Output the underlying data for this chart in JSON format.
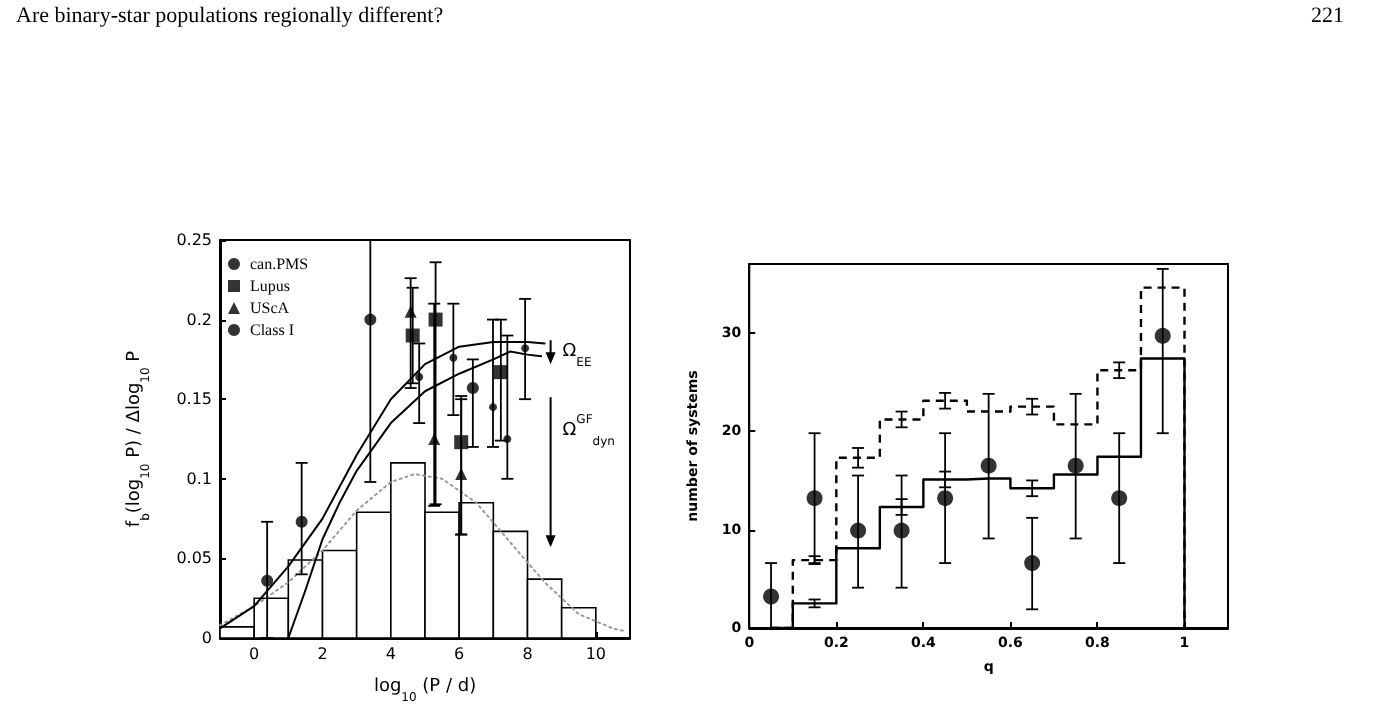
{
  "chart_data": [
    {
      "type": "scatter",
      "annotations": [
        "Are binary-star populations regionally different?",
        "221",
        "Ω$_{EE}$",
        "Ω$^{GF}$$_{dyn}$"
      ],
      "xlabel": "log$_{10}$ (P / d)",
      "ylabel": "f$_{b}$(log$_{10}$ P) / Δlog$_{10}$ P",
      "xlim": [
        -1,
        11
      ],
      "xticks": [
        0,
        2,
        4,
        6,
        8,
        10
      ],
      "ylim": [
        0,
        0.25
      ],
      "yticks": [
        0,
        0.05,
        0.1,
        0.15,
        0.2,
        0.25
      ],
      "legend": "top left",
      "bins": [
        -1,
        0,
        1,
        2,
        3,
        4,
        5,
        6,
        7,
        8,
        9,
        10
      ],
      "series": [
        {
          "type": "histogram",
          "color": "#000000",
          "values": [
            0.007,
            0.025,
            0.049,
            0.055,
            0.079,
            0.11,
            0.079,
            0.085,
            0.067,
            0.037,
            0.019
          ]
        },
        {
          "type": "line",
          "color": "#999999",
          "line_style": "dotted",
          "x": [
            -1,
            0,
            1,
            2,
            3,
            4,
            4.7,
            5.5,
            6.5,
            7.5,
            8.5,
            9.5,
            10.5,
            10.9
          ],
          "values": [
            0.008,
            0.02,
            0.035,
            0.055,
            0.08,
            0.098,
            0.103,
            0.1,
            0.085,
            0.06,
            0.035,
            0.015,
            0.006,
            0.004
          ]
        },
        {
          "type": "line",
          "color": "#000000",
          "line_style": "solid",
          "x": [
            -1,
            0,
            1,
            2,
            3,
            4,
            5,
            6,
            7,
            8,
            8.5
          ],
          "values": [
            0.006,
            0.02,
            0.045,
            0.075,
            0.115,
            0.15,
            0.172,
            0.183,
            0.186,
            0.186,
            0.185
          ]
        },
        {
          "type": "line",
          "color": "#000000",
          "line_style": "solid",
          "x": [
            1,
            1.5,
            2,
            2.5,
            3,
            4,
            5,
            6,
            7,
            7.5,
            8,
            8.4
          ],
          "values": [
            0,
            0.03,
            0.062,
            0.085,
            0.105,
            0.135,
            0.155,
            0.166,
            0.175,
            0.18,
            0.178,
            0.177
          ]
        },
        {
          "name": "can.PMS",
          "marker": "circle",
          "color": "#000000",
          "x": [
            0.38,
            1.39,
            3.4,
            6.4
          ],
          "values": [
            0.036,
            0.073,
            0.2,
            0.157
          ],
          "errors": [
            [
              0,
              0.073
            ],
            [
              0.04,
              0.11
            ],
            [
              0.098,
              0.25
            ],
            [
              0.12,
              0.175
            ]
          ]
        },
        {
          "name": "Lupus",
          "type": "scatter",
          "marker": "square",
          "color": "#000000",
          "x": [
            4.64,
            5.31,
            6.06,
            7.22
          ],
          "values": [
            0.19,
            0.2,
            0.123,
            0.167
          ],
          "errors": [
            [
              0.16,
              0.22
            ],
            [
              0.084,
              0.236
            ],
            [
              0.065,
              0.152
            ],
            [
              0.124,
              0.2
            ]
          ]
        },
        {
          "name": "UScA",
          "type": "scatter",
          "marker": "triangle",
          "color": "#000000",
          "x": [
            4.58,
            5.27,
            6.06
          ],
          "values": [
            0.205,
            0.125,
            0.103
          ],
          "errors": [
            [
              0.157,
              0.226
            ],
            [
              0.083,
              0.21
            ],
            [
              0.065,
              0.15
            ]
          ]
        },
        {
          "name": "Class I",
          "type": "scatter",
          "color": "#000000",
          "x": [
            4.83,
            5.83,
            6.99,
            7.41,
            7.93
          ],
          "values": [
            0.164,
            0.176,
            0.145,
            0.125,
            0.182
          ],
          "errors": [
            [
              0.135,
              0.185
            ],
            [
              0.14,
              0.21
            ],
            [
              0.12,
              0.2
            ],
            [
              0.1,
              0.19
            ],
            [
              0.15,
              0.213
            ]
          ]
        }
      ]
    },
    {
      "type": "scatter",
      "xlabel": "q",
      "ylabel": "number of systems",
      "xlim": [
        0,
        1.1
      ],
      "xticks": [
        0,
        0.2,
        0.4,
        0.6,
        0.8,
        1
      ],
      "ylim": [
        0,
        37
      ],
      "yticks": [
        0,
        10,
        20,
        30
      ],
      "series": [
        {
          "type": "step",
          "color": "#000000",
          "line_style": "dashed",
          "x": [
            0.05,
            0.15,
            0.25,
            0.35,
            0.45,
            0.55,
            0.65,
            0.75,
            0.85,
            0.95,
            1,
            1
          ],
          "values": [
            0,
            6.9,
            17.3,
            21.2,
            23.1,
            22,
            22.5,
            20.7,
            26.2,
            34.6,
            34.6,
            0
          ],
          "errors": [
            null,
            0.4,
            1,
            0.8,
            0.8,
            null,
            0.8,
            null,
            0.8,
            null,
            null,
            null
          ]
        },
        {
          "type": "step",
          "color": "#000000",
          "line_style": "solid",
          "x": [
            0.05,
            0.15,
            0.25,
            0.35,
            0.45,
            0.55,
            0.65,
            0.75,
            0.85,
            0.95,
            1,
            1
          ],
          "values": [
            0,
            2.5,
            8.1,
            12.3,
            15.1,
            15.2,
            14.2,
            15.6,
            17.4,
            27.4,
            27.4,
            0
          ],
          "errors": [
            null,
            0.4,
            null,
            0.8,
            0.8,
            null,
            0.8,
            null,
            null,
            null,
            null,
            null
          ]
        },
        {
          "marker": "circle",
          "color": "#000000",
          "x": [
            0.05,
            0.15,
            0.25,
            0.35,
            0.45,
            0.55,
            0.65,
            0.75,
            0.85,
            0.95
          ],
          "values": [
            3.2,
            13.2,
            9.9,
            9.9,
            13.2,
            16.5,
            6.6,
            16.5,
            13.2,
            29.7
          ],
          "errors": [
            [
              0,
              6.6
            ],
            [
              6.6,
              19.8
            ],
            [
              4.1,
              15.5
            ],
            [
              4.1,
              15.5
            ],
            [
              6.6,
              19.8
            ],
            [
              9.1,
              23.8
            ],
            [
              1.9,
              11.2
            ],
            [
              9.1,
              23.8
            ],
            [
              6.6,
              19.8
            ],
            [
              19.8,
              36.5
            ]
          ]
        }
      ]
    }
  ]
}
